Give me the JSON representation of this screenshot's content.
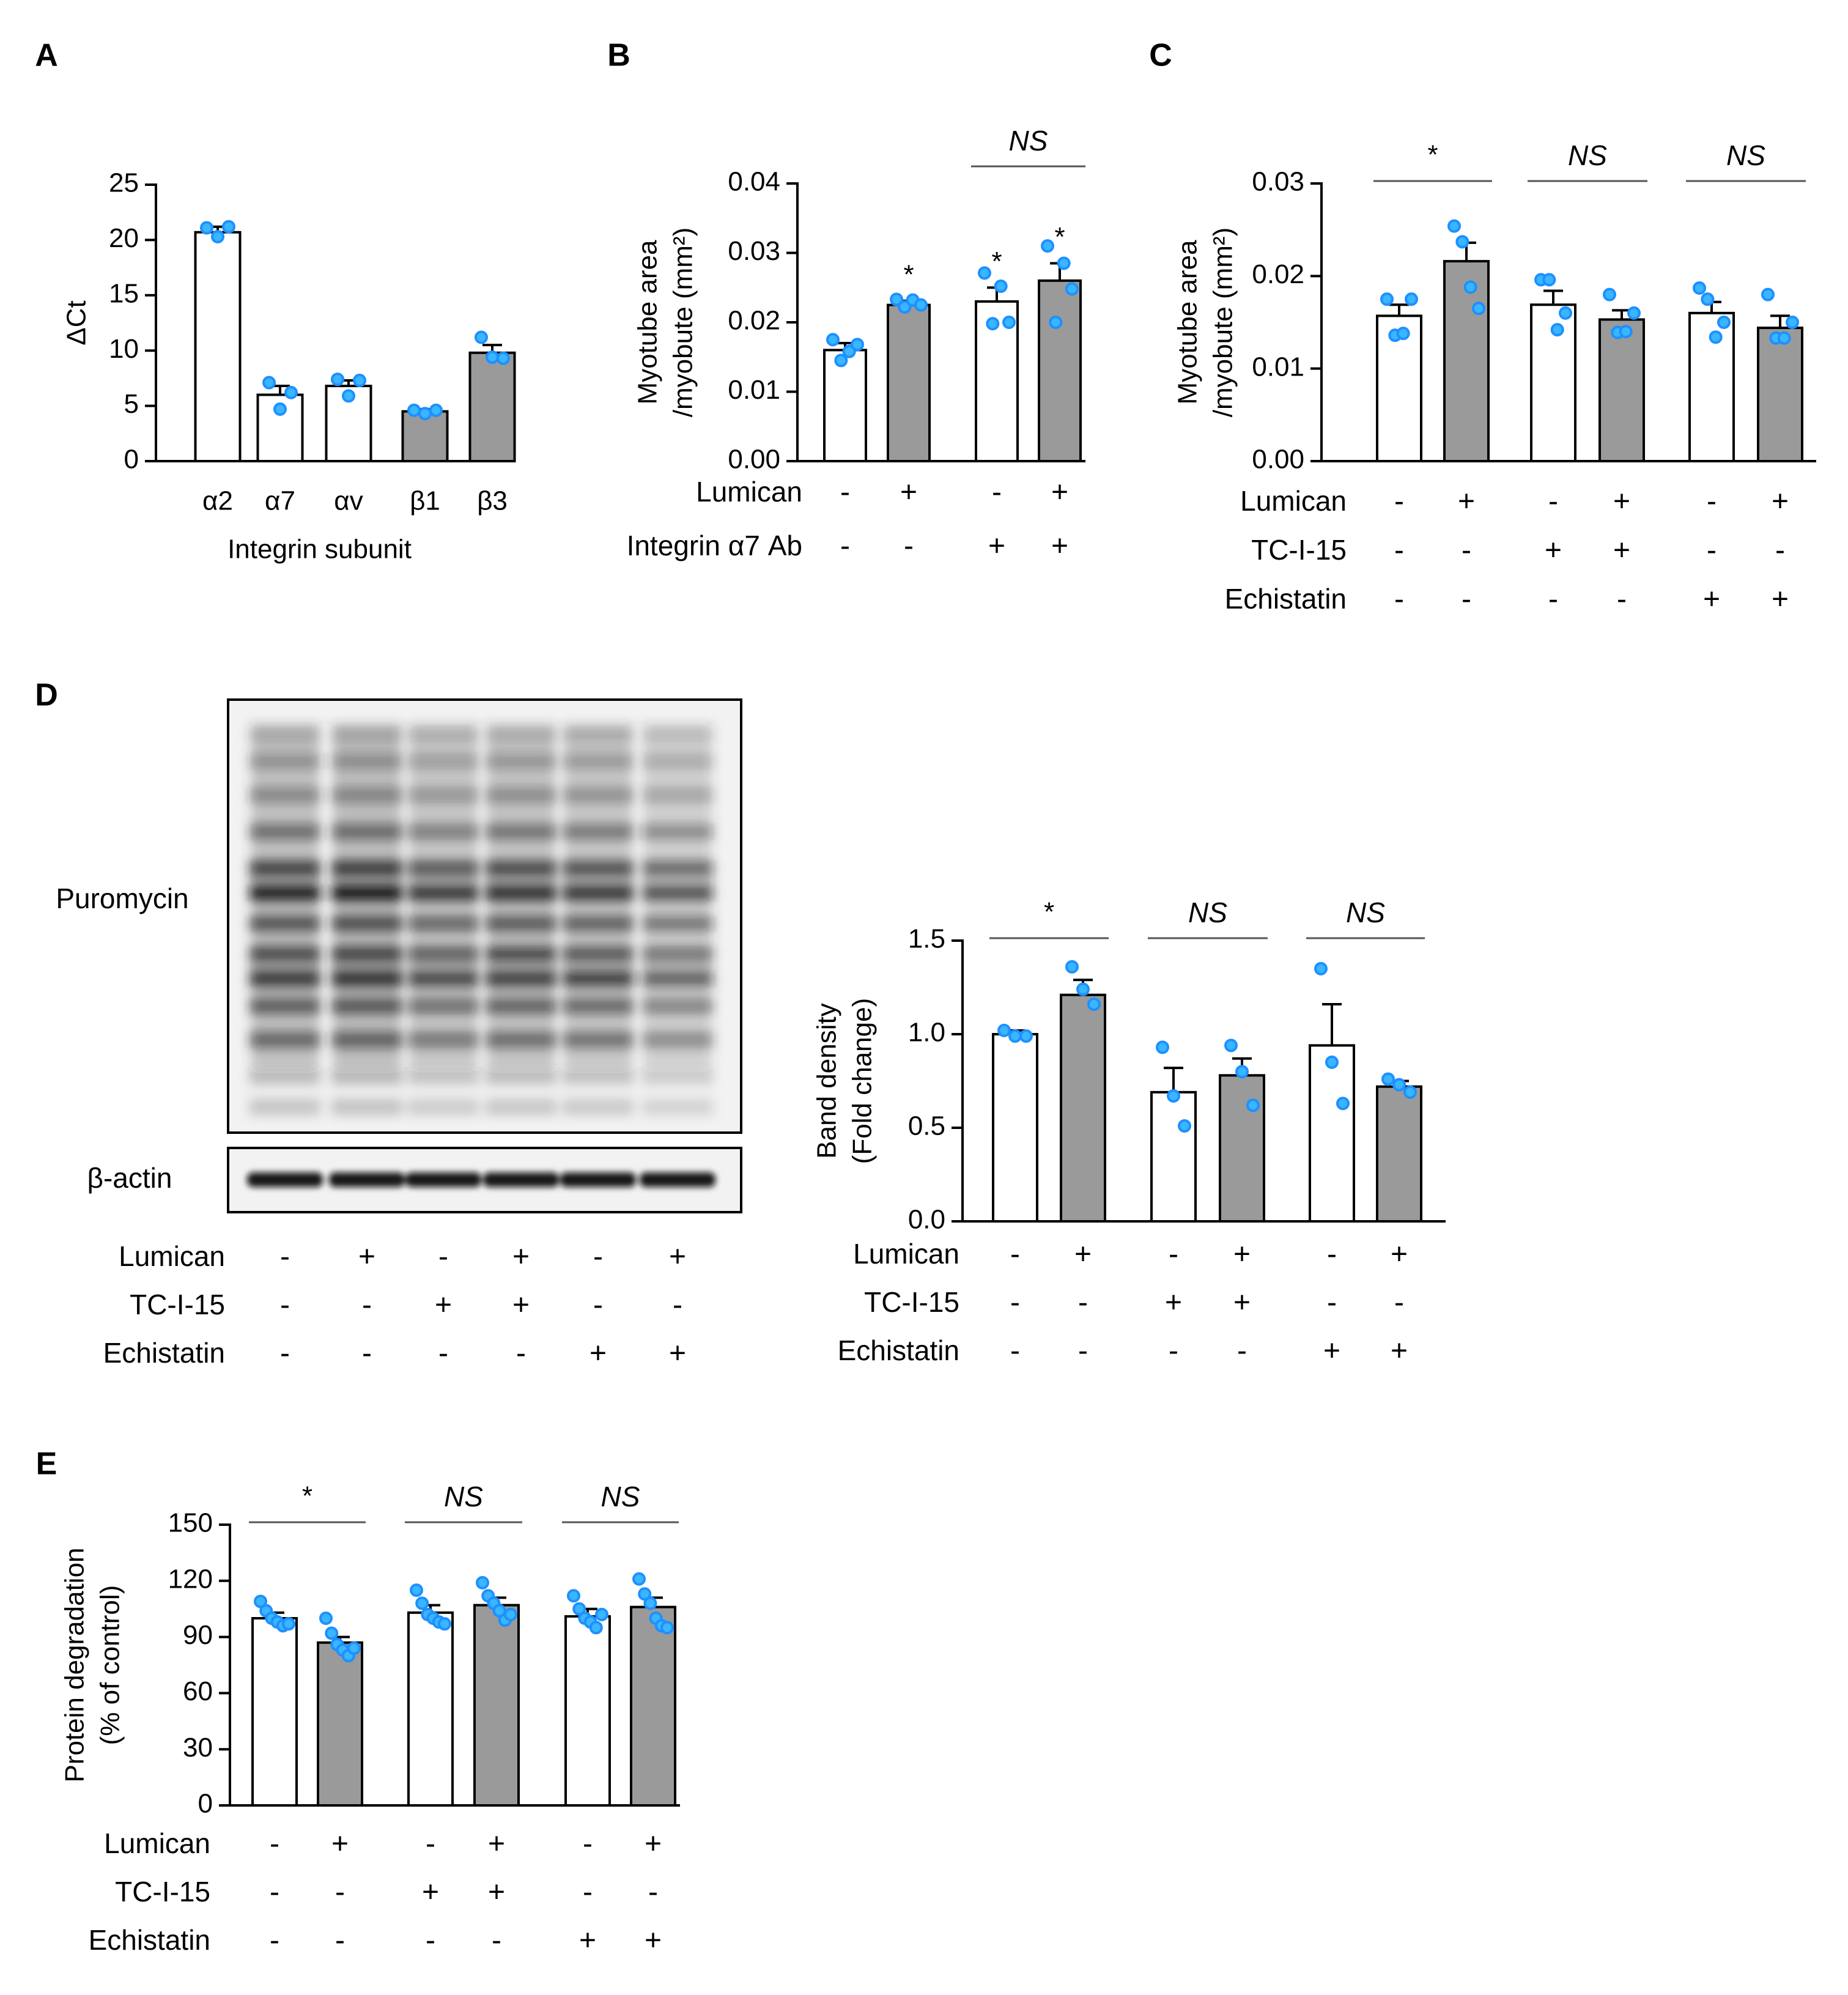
{
  "figure": {
    "dot_color": "#1E90FF",
    "dot_fill": "#39B6FF",
    "bar_gray": "#9A9A9A",
    "bar_white": "#FFFFFF"
  },
  "chart_data": [
    {
      "panel": "A",
      "type": "bar",
      "ylabel": "ΔCt",
      "xlabel": "Integrin subunit",
      "ylim": [
        0,
        25
      ],
      "yticks": [
        "0",
        "5",
        "10",
        "15",
        "20",
        "25"
      ],
      "categories": [
        "α2",
        "α7",
        "αv",
        "β1",
        "β3"
      ],
      "values": [
        20.7,
        6.0,
        6.8,
        4.5,
        9.8
      ],
      "errors": [
        0.5,
        0.8,
        0.5,
        0.2,
        0.7
      ],
      "fills": [
        "white",
        "white",
        "white",
        "gray",
        "gray"
      ],
      "points": [
        [
          21.1,
          20.3,
          21.2
        ],
        [
          7.1,
          4.7,
          6.2
        ],
        [
          7.4,
          5.9,
          7.3
        ],
        [
          4.6,
          4.3,
          4.6
        ],
        [
          11.2,
          9.4,
          9.3
        ]
      ]
    },
    {
      "panel": "B",
      "type": "bar",
      "ylabel": [
        "Myotube area",
        "/myobute (mm²)"
      ],
      "ylim": [
        0,
        0.04
      ],
      "yticks": [
        "0.00",
        "0.01",
        "0.02",
        "0.03",
        "0.04"
      ],
      "values": [
        0.016,
        0.0225,
        0.023,
        0.026
      ],
      "errors": [
        0.001,
        0.0006,
        0.002,
        0.0025
      ],
      "fills": [
        "white",
        "gray",
        "white",
        "gray"
      ],
      "points": [
        [
          0.0175,
          0.0145,
          0.0158,
          0.0168
        ],
        [
          0.0233,
          0.0222,
          0.0232,
          0.0225
        ],
        [
          0.0271,
          0.0198,
          0.0252,
          0.02
        ],
        [
          0.031,
          0.02,
          0.0285,
          0.0248
        ]
      ],
      "bar_marks": [
        "",
        "*",
        "*",
        "*"
      ],
      "brackets": [
        {
          "from": 2,
          "to": 3,
          "label": "NS"
        }
      ],
      "factors": [
        {
          "label": "Lumican",
          "signs": [
            "-",
            "+",
            "-",
            "+"
          ]
        },
        {
          "label": "Integrin α7 Ab",
          "signs": [
            "-",
            "-",
            "+",
            "+"
          ]
        }
      ]
    },
    {
      "panel": "C",
      "type": "bar",
      "ylabel": [
        "Myotube area",
        "/myobute (mm²)"
      ],
      "ylim": [
        0,
        0.03
      ],
      "yticks": [
        "0.00",
        "0.01",
        "0.02",
        "0.03"
      ],
      "values": [
        0.0157,
        0.0216,
        0.0169,
        0.0153,
        0.016,
        0.0144
      ],
      "errors": [
        0.0012,
        0.002,
        0.0015,
        0.001,
        0.0012,
        0.0013
      ],
      "fills": [
        "white",
        "gray",
        "white",
        "gray",
        "white",
        "gray"
      ],
      "points": [
        [
          0.0175,
          0.0136,
          0.0138,
          0.0175
        ],
        [
          0.0254,
          0.0237,
          0.0188,
          0.0165
        ],
        [
          0.0196,
          0.0196,
          0.0142,
          0.016
        ],
        [
          0.018,
          0.0139,
          0.014,
          0.016
        ],
        [
          0.0187,
          0.0175,
          0.0134,
          0.015
        ],
        [
          0.018,
          0.0133,
          0.0133,
          0.015
        ]
      ],
      "brackets": [
        {
          "from": 0,
          "to": 1,
          "label": "*"
        },
        {
          "from": 2,
          "to": 3,
          "label": "NS"
        },
        {
          "from": 4,
          "to": 5,
          "label": "NS"
        }
      ],
      "factors": [
        {
          "label": "Lumican",
          "signs": [
            "-",
            "+",
            "-",
            "+",
            "-",
            "+"
          ]
        },
        {
          "label": "TC-I-15",
          "signs": [
            "-",
            "-",
            "+",
            "+",
            "-",
            "-"
          ]
        },
        {
          "label": "Echistatin",
          "signs": [
            "-",
            "-",
            "-",
            "-",
            "+",
            "+"
          ]
        }
      ]
    },
    {
      "panel": "D",
      "type": "bar",
      "ylabel": [
        "Band density",
        "(Fold change)"
      ],
      "ylim": [
        0,
        1.5
      ],
      "yticks": [
        "0.0",
        "0.5",
        "1.0",
        "1.5"
      ],
      "values": [
        1.0,
        1.21,
        0.69,
        0.78,
        0.94,
        0.72
      ],
      "errors": [
        0.02,
        0.08,
        0.13,
        0.09,
        0.22,
        0.03
      ],
      "fills": [
        "white",
        "gray",
        "white",
        "gray",
        "white",
        "gray"
      ],
      "points": [
        [
          1.02,
          0.99,
          0.99
        ],
        [
          1.36,
          1.24,
          1.16
        ],
        [
          0.93,
          0.67,
          0.51
        ],
        [
          0.94,
          0.8,
          0.62
        ],
        [
          1.35,
          0.85,
          0.63
        ],
        [
          0.76,
          0.73,
          0.69
        ]
      ],
      "brackets": [
        {
          "from": 0,
          "to": 1,
          "label": "*"
        },
        {
          "from": 2,
          "to": 3,
          "label": "NS"
        },
        {
          "from": 4,
          "to": 5,
          "label": "NS"
        }
      ],
      "factors": [
        {
          "label": "Lumican",
          "signs": [
            "-",
            "+",
            "-",
            "+",
            "-",
            "+"
          ]
        },
        {
          "label": "TC-I-15",
          "signs": [
            "-",
            "-",
            "+",
            "+",
            "-",
            "-"
          ]
        },
        {
          "label": "Echistatin",
          "signs": [
            "-",
            "-",
            "-",
            "-",
            "+",
            "+"
          ]
        }
      ]
    },
    {
      "panel": "E",
      "type": "bar",
      "ylabel": [
        "Protein degradation",
        "(% of control)"
      ],
      "ylim": [
        0,
        150
      ],
      "yticks": [
        "0",
        "30",
        "60",
        "90",
        "120",
        "150"
      ],
      "values": [
        100,
        87,
        103,
        107,
        101,
        106
      ],
      "errors": [
        3,
        3,
        4,
        4,
        4,
        5
      ],
      "fills": [
        "white",
        "gray",
        "white",
        "gray",
        "white",
        "gray"
      ],
      "points": [
        [
          109,
          104,
          100,
          98,
          96,
          97
        ],
        [
          100,
          92,
          86,
          83,
          80,
          84
        ],
        [
          115,
          108,
          102,
          100,
          98,
          97
        ],
        [
          119,
          112,
          108,
          104,
          99,
          102
        ],
        [
          112,
          105,
          100,
          98,
          95,
          102
        ],
        [
          121,
          113,
          108,
          100,
          96,
          95
        ]
      ],
      "brackets": [
        {
          "from": 0,
          "to": 1,
          "label": "*"
        },
        {
          "from": 2,
          "to": 3,
          "label": "NS"
        },
        {
          "from": 4,
          "to": 5,
          "label": "NS"
        }
      ],
      "factors": [
        {
          "label": "Lumican",
          "signs": [
            "-",
            "+",
            "-",
            "+",
            "-",
            "+"
          ]
        },
        {
          "label": "TC-I-15",
          "signs": [
            "-",
            "-",
            "+",
            "+",
            "-",
            "-"
          ]
        },
        {
          "label": "Echistatin",
          "signs": [
            "-",
            "-",
            "-",
            "-",
            "+",
            "+"
          ]
        }
      ]
    }
  ],
  "western_blot": {
    "panel": "D",
    "labels": {
      "puromycin": "Puromycin",
      "actin": "β-actin"
    },
    "factors": [
      {
        "label": "Lumican",
        "signs": [
          "-",
          "+",
          "-",
          "+",
          "-",
          "+"
        ]
      },
      {
        "label": "TC-I-15",
        "signs": [
          "-",
          "-",
          "+",
          "+",
          "-",
          "-"
        ]
      },
      {
        "label": "Echistatin",
        "signs": [
          "-",
          "-",
          "-",
          "-",
          "+",
          "+"
        ]
      }
    ]
  }
}
